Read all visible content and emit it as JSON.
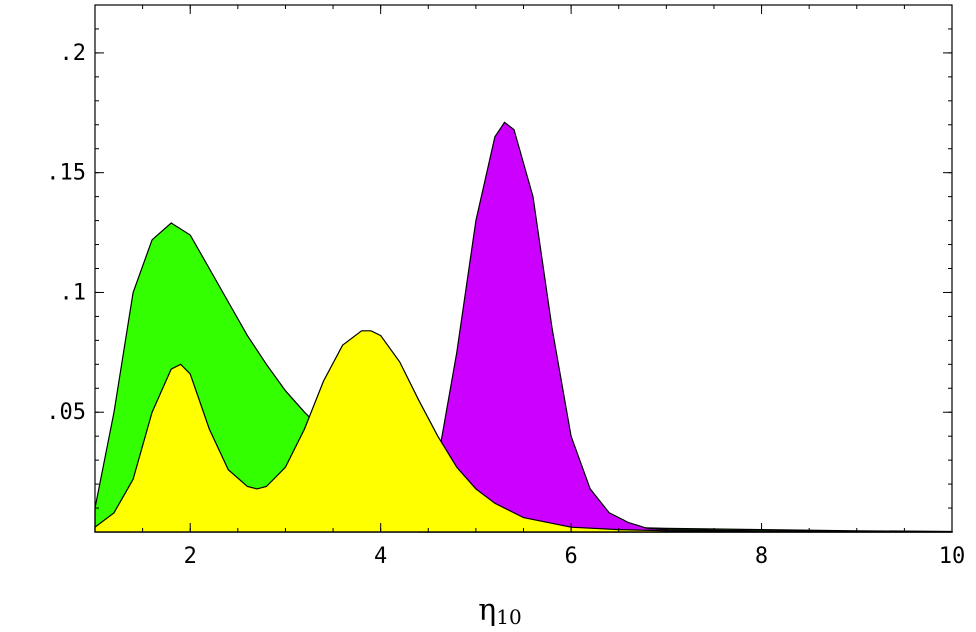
{
  "chart_data": {
    "type": "area",
    "xlabel": "η",
    "xlabel_subscript": "10",
    "ylabel": "",
    "xlim": [
      1,
      10
    ],
    "ylim": [
      0,
      0.22
    ],
    "x_ticks": [
      2,
      4,
      6,
      8,
      10
    ],
    "y_ticks": [
      0.05,
      0.1,
      0.15,
      0.2
    ],
    "x_tick_labels": [
      "2",
      "4",
      "6",
      "8",
      "10"
    ],
    "y_tick_labels": [
      ".05",
      ".1",
      ".15",
      ".2"
    ],
    "series": [
      {
        "color": "#33ff00",
        "x": [
          1.0,
          1.2,
          1.4,
          1.6,
          1.8,
          2.0,
          2.2,
          2.4,
          2.6,
          2.8,
          3.0,
          3.2,
          3.4,
          3.6,
          3.8,
          4.0,
          4.2,
          4.4,
          4.6,
          4.8,
          5.0,
          5.5,
          6.0,
          6.5,
          7.0,
          8.0,
          9.0,
          10.0
        ],
        "values": [
          0.01,
          0.05,
          0.1,
          0.122,
          0.129,
          0.124,
          0.11,
          0.096,
          0.082,
          0.07,
          0.059,
          0.05,
          0.042,
          0.036,
          0.031,
          0.026,
          0.022,
          0.018,
          0.015,
          0.012,
          0.01,
          0.006,
          0.004,
          0.002,
          0.0015,
          0.001,
          0.0005,
          0.0002
        ]
      },
      {
        "color": "#cc00ff",
        "x": [
          4.4,
          4.6,
          4.8,
          5.0,
          5.2,
          5.3,
          5.4,
          5.6,
          5.8,
          6.0,
          6.2,
          6.4,
          6.6,
          6.8,
          7.0,
          8.0,
          10.0
        ],
        "values": [
          0.02,
          0.03,
          0.075,
          0.13,
          0.165,
          0.171,
          0.168,
          0.14,
          0.085,
          0.04,
          0.018,
          0.008,
          0.004,
          0.0015,
          0.001,
          0.0005,
          0.0001
        ]
      },
      {
        "color": "#ffff00",
        "x": [
          1.0,
          1.2,
          1.4,
          1.6,
          1.8,
          1.9,
          2.0,
          2.2,
          2.4,
          2.6,
          2.7,
          2.8,
          3.0,
          3.2,
          3.4,
          3.6,
          3.8,
          3.9,
          4.0,
          4.2,
          4.4,
          4.6,
          4.8,
          5.0,
          5.2,
          5.5,
          6.0,
          6.5,
          7.0,
          8.0,
          10.0
        ],
        "values": [
          0.002,
          0.008,
          0.022,
          0.05,
          0.068,
          0.07,
          0.066,
          0.043,
          0.026,
          0.019,
          0.018,
          0.019,
          0.027,
          0.043,
          0.063,
          0.078,
          0.084,
          0.084,
          0.082,
          0.071,
          0.055,
          0.04,
          0.027,
          0.018,
          0.012,
          0.006,
          0.002,
          0.001,
          0.0005,
          0.0002,
          0.0001
        ]
      }
    ]
  }
}
